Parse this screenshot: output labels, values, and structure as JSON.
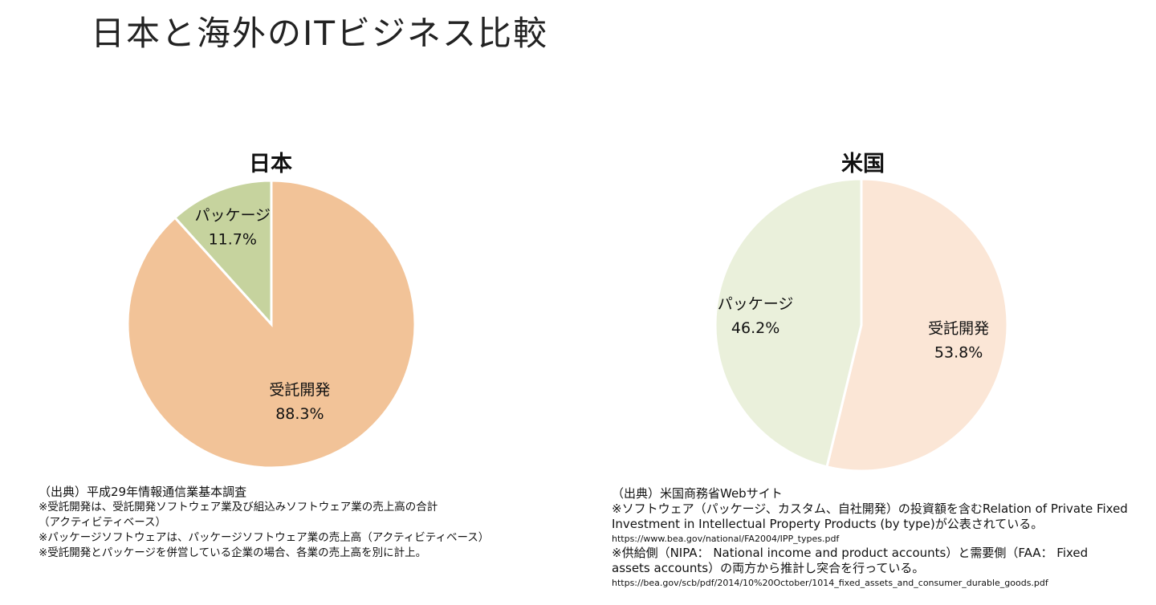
{
  "slide": {
    "title": "日本と海外のITビジネス比較"
  },
  "chart_data": [
    {
      "type": "pie",
      "title": "日本",
      "slices": [
        {
          "label": "受託開発",
          "value": 88.3,
          "value_label": "88.3%",
          "color": "#f2c398"
        },
        {
          "label": "パッケージ",
          "value": 11.7,
          "value_label": "11.7%",
          "color": "#c6d39e"
        }
      ]
    },
    {
      "type": "pie",
      "title": "米国",
      "slices": [
        {
          "label": "受託開発",
          "value": 53.8,
          "value_label": "53.8%",
          "color": "#fbe6d6"
        },
        {
          "label": "パッケージ",
          "value": 46.2,
          "value_label": "46.2%",
          "color": "#eaf0db"
        }
      ]
    }
  ],
  "notes": {
    "japan": {
      "source": "（出典）平成29年情報通信業基本調査",
      "lines": [
        "※受託開発は、受託開発ソフトウェア業及び組込みソフトウェア業の売上高の合計",
        "（アクティビティベース）",
        "※パッケージソフトウェアは、パッケージソフトウェア業の売上高（アクティビティベース）",
        "※受託開発とパッケージを併営している企業の場合、各業の売上高を別に計上。"
      ]
    },
    "us": {
      "source": "（出典）米国商務省Webサイト",
      "line1": "※ソフトウェア（パッケージ、カスタム、自社開発）の投資額を含むRelation of Private Fixed",
      "line2": "Investment in Intellectual Property Products (by type)が公表されている。",
      "url1": "https://www.bea.gov/national/FA2004/IPP_types.pdf",
      "line3": "※供給側（NIPA： National income and product accounts）と需要側（FAA： Fixed",
      "line4": "assets accounts）の両方から推計し突合を行っている。",
      "url2": "https://bea.gov/scb/pdf/2014/10%20October/1014_fixed_assets_and_consumer_durable_goods.pdf"
    }
  }
}
